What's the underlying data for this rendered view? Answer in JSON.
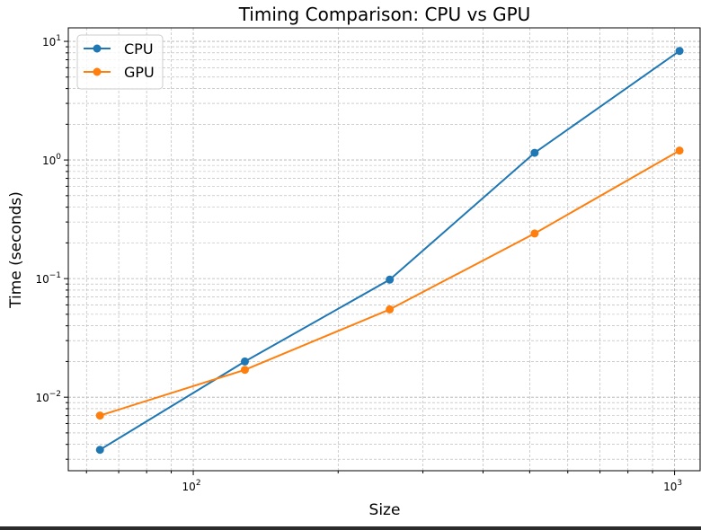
{
  "chart_data": {
    "type": "line",
    "title": "Timing Comparison: CPU vs GPU",
    "xlabel": "Size",
    "ylabel": "Time (seconds)",
    "xscale": "log",
    "yscale": "log",
    "xlim": [
      55,
      1130
    ],
    "ylim": [
      0.0024,
      13
    ],
    "x_ticks": [
      {
        "value": 100,
        "base": "10",
        "exp": "2"
      },
      {
        "value": 1000,
        "base": "10",
        "exp": "3"
      }
    ],
    "y_ticks": [
      {
        "value": 0.01,
        "base": "10",
        "exp": "−2"
      },
      {
        "value": 0.1,
        "base": "10",
        "exp": "−1"
      },
      {
        "value": 1,
        "base": "10",
        "exp": "0"
      },
      {
        "value": 10,
        "base": "10",
        "exp": "1"
      }
    ],
    "grid": true,
    "legend_position": "top-left",
    "x": [
      64,
      128,
      256,
      512,
      1024
    ],
    "series": [
      {
        "name": "CPU",
        "color": "#1f77b4",
        "values": [
          0.0036,
          0.02,
          0.098,
          1.15,
          8.3
        ]
      },
      {
        "name": "GPU",
        "color": "#ff7f0e",
        "values": [
          0.007,
          0.017,
          0.055,
          0.24,
          1.2
        ]
      }
    ]
  }
}
